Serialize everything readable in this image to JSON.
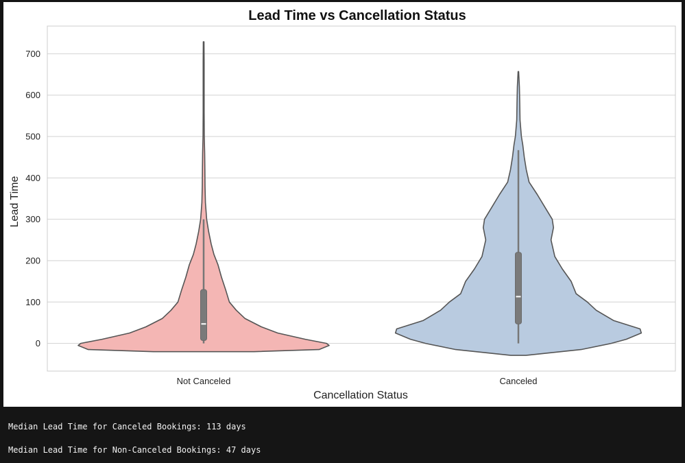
{
  "chart_data": {
    "type": "violin",
    "title": "Lead Time vs Cancellation Status",
    "xlabel": "Cancellation Status",
    "ylabel": "Lead Time",
    "categories": [
      "Not Canceled",
      "Canceled"
    ],
    "ylim": [
      -67,
      767
    ],
    "yticks": [
      0,
      100,
      200,
      300,
      400,
      500,
      600,
      700
    ],
    "grid": true,
    "colors": [
      "#f4b6b4",
      "#b9cbe0"
    ],
    "outline_color": "#555555",
    "violins": [
      {
        "category": "Not Canceled",
        "min": -20,
        "max": 729,
        "q1": 7,
        "median": 47,
        "q3": 130,
        "whisker_low": 0,
        "whisker_high": 300,
        "profile": [
          [
            -20,
            0.4
          ],
          [
            -15,
            0.92
          ],
          [
            -5,
            1.0
          ],
          [
            0,
            0.98
          ],
          [
            10,
            0.81
          ],
          [
            25,
            0.59
          ],
          [
            40,
            0.46
          ],
          [
            60,
            0.33
          ],
          [
            80,
            0.26
          ],
          [
            100,
            0.205
          ],
          [
            130,
            0.175
          ],
          [
            160,
            0.142
          ],
          [
            190,
            0.114
          ],
          [
            215,
            0.082
          ],
          [
            240,
            0.06
          ],
          [
            270,
            0.04
          ],
          [
            300,
            0.024
          ],
          [
            340,
            0.014
          ],
          [
            380,
            0.011
          ],
          [
            420,
            0.01
          ],
          [
            460,
            0.008
          ],
          [
            500,
            0.005
          ],
          [
            560,
            0.004
          ],
          [
            620,
            0.004
          ],
          [
            680,
            0.004
          ],
          [
            729,
            0.003
          ]
        ]
      },
      {
        "category": "Canceled",
        "min": -29,
        "max": 657,
        "q1": 47,
        "median": 113,
        "q3": 220,
        "whisker_low": 0,
        "whisker_high": 467,
        "profile": [
          [
            -29,
            0.06
          ],
          [
            -15,
            0.5
          ],
          [
            0,
            0.74
          ],
          [
            10,
            0.86
          ],
          [
            25,
            0.98
          ],
          [
            35,
            0.97
          ],
          [
            55,
            0.76
          ],
          [
            80,
            0.62
          ],
          [
            100,
            0.55
          ],
          [
            120,
            0.46
          ],
          [
            150,
            0.42
          ],
          [
            180,
            0.35
          ],
          [
            210,
            0.29
          ],
          [
            250,
            0.26
          ],
          [
            280,
            0.28
          ],
          [
            300,
            0.27
          ],
          [
            330,
            0.21
          ],
          [
            360,
            0.15
          ],
          [
            390,
            0.085
          ],
          [
            420,
            0.063
          ],
          [
            450,
            0.047
          ],
          [
            480,
            0.035
          ],
          [
            500,
            0.024
          ],
          [
            540,
            0.013
          ],
          [
            580,
            0.011
          ],
          [
            620,
            0.008
          ],
          [
            657,
            0.002
          ]
        ]
      }
    ]
  },
  "output": {
    "lines": [
      "Median Lead Time for Canceled Bookings: 113 days",
      "Median Lead Time for Non-Canceled Bookings: 47 days"
    ]
  }
}
